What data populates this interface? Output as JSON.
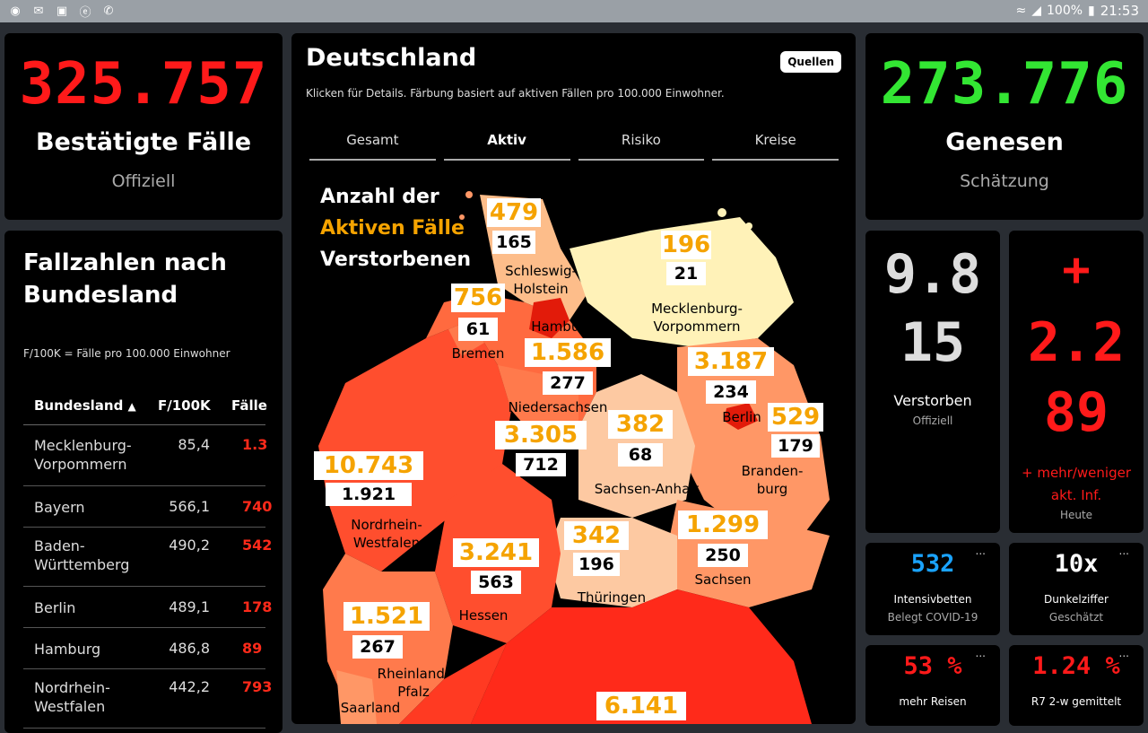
{
  "statusbar": {
    "battery": "100%",
    "time": "21:53"
  },
  "confirmed": {
    "value": "325.757",
    "label": "Bestätigte Fälle",
    "sub": "Offiziell"
  },
  "recovered": {
    "value": "273.776",
    "label": "Genesen",
    "sub": "Schätzung"
  },
  "map": {
    "title": "Deutschland",
    "subtitle": "Klicken für Details. Färbung basiert auf aktiven Fällen pro 100.000 Einwohner.",
    "sources_label": "Quellen",
    "tabs": [
      "Gesamt",
      "Aktiv",
      "Risiko",
      "Kreise"
    ],
    "active_tab": "Aktiv",
    "legend": {
      "line1": "Anzahl der",
      "line2": "Aktiven Fälle",
      "line3": "Verstorbenen"
    },
    "states": [
      {
        "name_lines": [
          "Schleswig-",
          "Holstein"
        ],
        "active": "479",
        "deaths": "165"
      },
      {
        "name_lines": [
          "Mecklenburg-",
          "Vorpommern"
        ],
        "active": "196",
        "deaths": "21"
      },
      {
        "name_lines": [
          "Hamburg"
        ],
        "active": "",
        "deaths": ""
      },
      {
        "name_lines": [
          "Bremen"
        ],
        "active": "756",
        "deaths": "61"
      },
      {
        "name_lines": [
          "Niedersachsen"
        ],
        "active": "1.586",
        "deaths": "277"
      },
      {
        "name_lines": [
          "Berlin"
        ],
        "active": "3.187",
        "deaths": "234"
      },
      {
        "name_lines": [
          "Branden-",
          "burg"
        ],
        "active": "529",
        "deaths": "179"
      },
      {
        "name_lines": [
          "Sachsen-Anhalt"
        ],
        "active": "382",
        "deaths": "68"
      },
      {
        "name_lines": [
          "Nordrhein-",
          "Westfalen"
        ],
        "active": "10.743",
        "deaths": "1.921"
      },
      {
        "name_lines": [],
        "active": "3.305",
        "deaths": "712"
      },
      {
        "name_lines": [
          "Hessen"
        ],
        "active": "3.241",
        "deaths": "563"
      },
      {
        "name_lines": [
          "Thüringen"
        ],
        "active": "342",
        "deaths": "196"
      },
      {
        "name_lines": [
          "Sachsen"
        ],
        "active": "1.299",
        "deaths": "250"
      },
      {
        "name_lines": [
          "Rheinland-",
          "Pfalz"
        ],
        "active": "1.521",
        "deaths": "267"
      },
      {
        "name_lines": [
          "Saarland"
        ],
        "active": "",
        "deaths": ""
      },
      {
        "name_lines": [],
        "active": "6.141",
        "deaths": ""
      }
    ]
  },
  "table": {
    "title_line1": "Fallzahlen nach",
    "title_line2": "Bundesland",
    "note": "F/100K = Fälle pro 100.000 Einwohner",
    "headers": [
      "Bundesland",
      "F/100K",
      "Fälle"
    ],
    "rows": [
      {
        "name_lines": [
          "Mecklenburg-",
          "Vorpommern"
        ],
        "per100k": "85,4",
        "cases": "1.3"
      },
      {
        "name_lines": [
          "Bayern"
        ],
        "per100k": "566,1",
        "cases": "740"
      },
      {
        "name_lines": [
          "Baden-",
          "Württemberg"
        ],
        "per100k": "490,2",
        "cases": "542"
      },
      {
        "name_lines": [
          "Berlin"
        ],
        "per100k": "489,1",
        "cases": "178"
      },
      {
        "name_lines": [
          "Hamburg"
        ],
        "per100k": "486,8",
        "cases": "89"
      },
      {
        "name_lines": [
          "Nordrhein-",
          "Westfalen"
        ],
        "per100k": "442,2",
        "cases": "793"
      }
    ]
  },
  "deaths_card": {
    "value1": "9.8",
    "value2": "15",
    "label": "Verstorben",
    "sub": "Offiziell"
  },
  "change_card": {
    "sign": "+",
    "value1": "2.2",
    "value2": "89",
    "label_line1": "+ mehr/weniger",
    "label_line2": "akt. Inf.",
    "sub": "Heute"
  },
  "icu_card": {
    "value": "532",
    "label": "Intensivbetten",
    "sub": "Belegt COVID-19",
    "menu": "..."
  },
  "dark_card": {
    "value": "10x",
    "label": "Dunkelziffer",
    "sub": "Geschätzt",
    "menu": "..."
  },
  "travel_card": {
    "value": "53 %",
    "label": "mehr Reisen",
    "menu": "..."
  },
  "r7_card": {
    "value": "1.24 %",
    "label": "R7 2-w gemittelt",
    "menu": "..."
  },
  "colors": {
    "red": "#ff1a1a",
    "green": "#33e633",
    "orange": "#f5a300",
    "blue": "#1aa3ff"
  }
}
